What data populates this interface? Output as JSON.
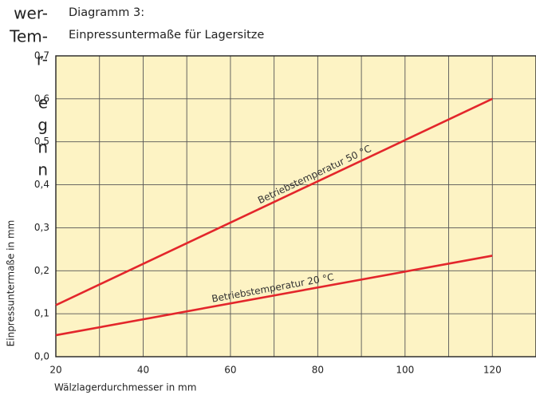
{
  "side_text": [
    "wer-",
    "Tem-",
    "r-",
    "e",
    "g",
    "n",
    "n"
  ],
  "chart_data": {
    "type": "line",
    "title": [
      "Diagramm 3:",
      "Einpressuntermaße für Lagersitze"
    ],
    "xlabel": "Wälzlagerdurchmesser in mm",
    "ylabel": "Einpressuntermaße in mm",
    "x": [
      20,
      120
    ],
    "series": [
      {
        "name": "Betriebstemperatur 50 °C",
        "color": "#e3262b",
        "values": [
          0.12,
          0.6
        ]
      },
      {
        "name": "Betriebstemperatur 20 °C",
        "color": "#e3262b",
        "values": [
          0.05,
          0.235
        ]
      }
    ],
    "xlim": [
      20,
      130
    ],
    "xticks": [
      20,
      40,
      60,
      80,
      100,
      120
    ],
    "xgrid": [
      20,
      30,
      40,
      50,
      60,
      70,
      80,
      90,
      100,
      110,
      120,
      130
    ],
    "ylim": [
      0,
      0.7
    ],
    "yticks": [
      {
        "value": 0,
        "label": "0,0"
      },
      {
        "value": 0.1,
        "label": "0,1"
      },
      {
        "value": 0.2,
        "label": "0,2"
      },
      {
        "value": 0.3,
        "label": "0,3"
      },
      {
        "value": 0.4,
        "label": "0,4"
      },
      {
        "value": 0.5,
        "label": "0,5"
      },
      {
        "value": 0.6,
        "label": "0,6"
      },
      {
        "value": 0.7,
        "label": "0,7"
      }
    ],
    "background": "#fdf3c4",
    "grid": true
  }
}
